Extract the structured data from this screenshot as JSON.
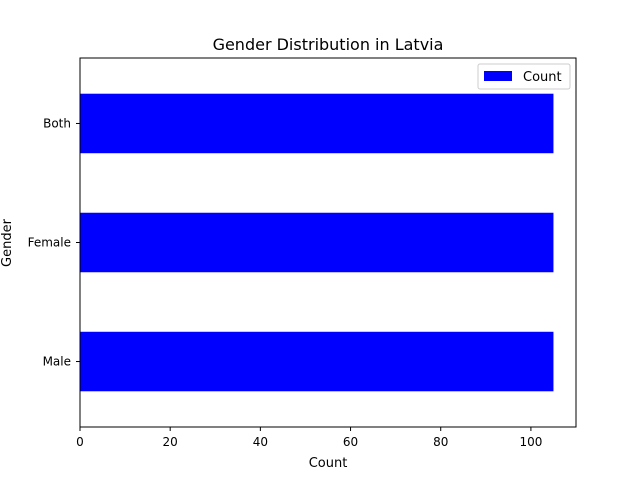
{
  "chart_data": {
    "type": "bar",
    "orientation": "horizontal",
    "title": "Gender Distribution in Latvia",
    "xlabel": "Count",
    "ylabel": "Gender",
    "categories": [
      "Male",
      "Female",
      "Both"
    ],
    "series": [
      {
        "name": "Count",
        "values": [
          105,
          105,
          105
        ]
      }
    ],
    "xlim": [
      0,
      110
    ],
    "xticks": [
      0,
      20,
      40,
      60,
      80,
      100
    ],
    "grid": false,
    "legend_position": "top-right",
    "bar_color": "#0000ff"
  }
}
